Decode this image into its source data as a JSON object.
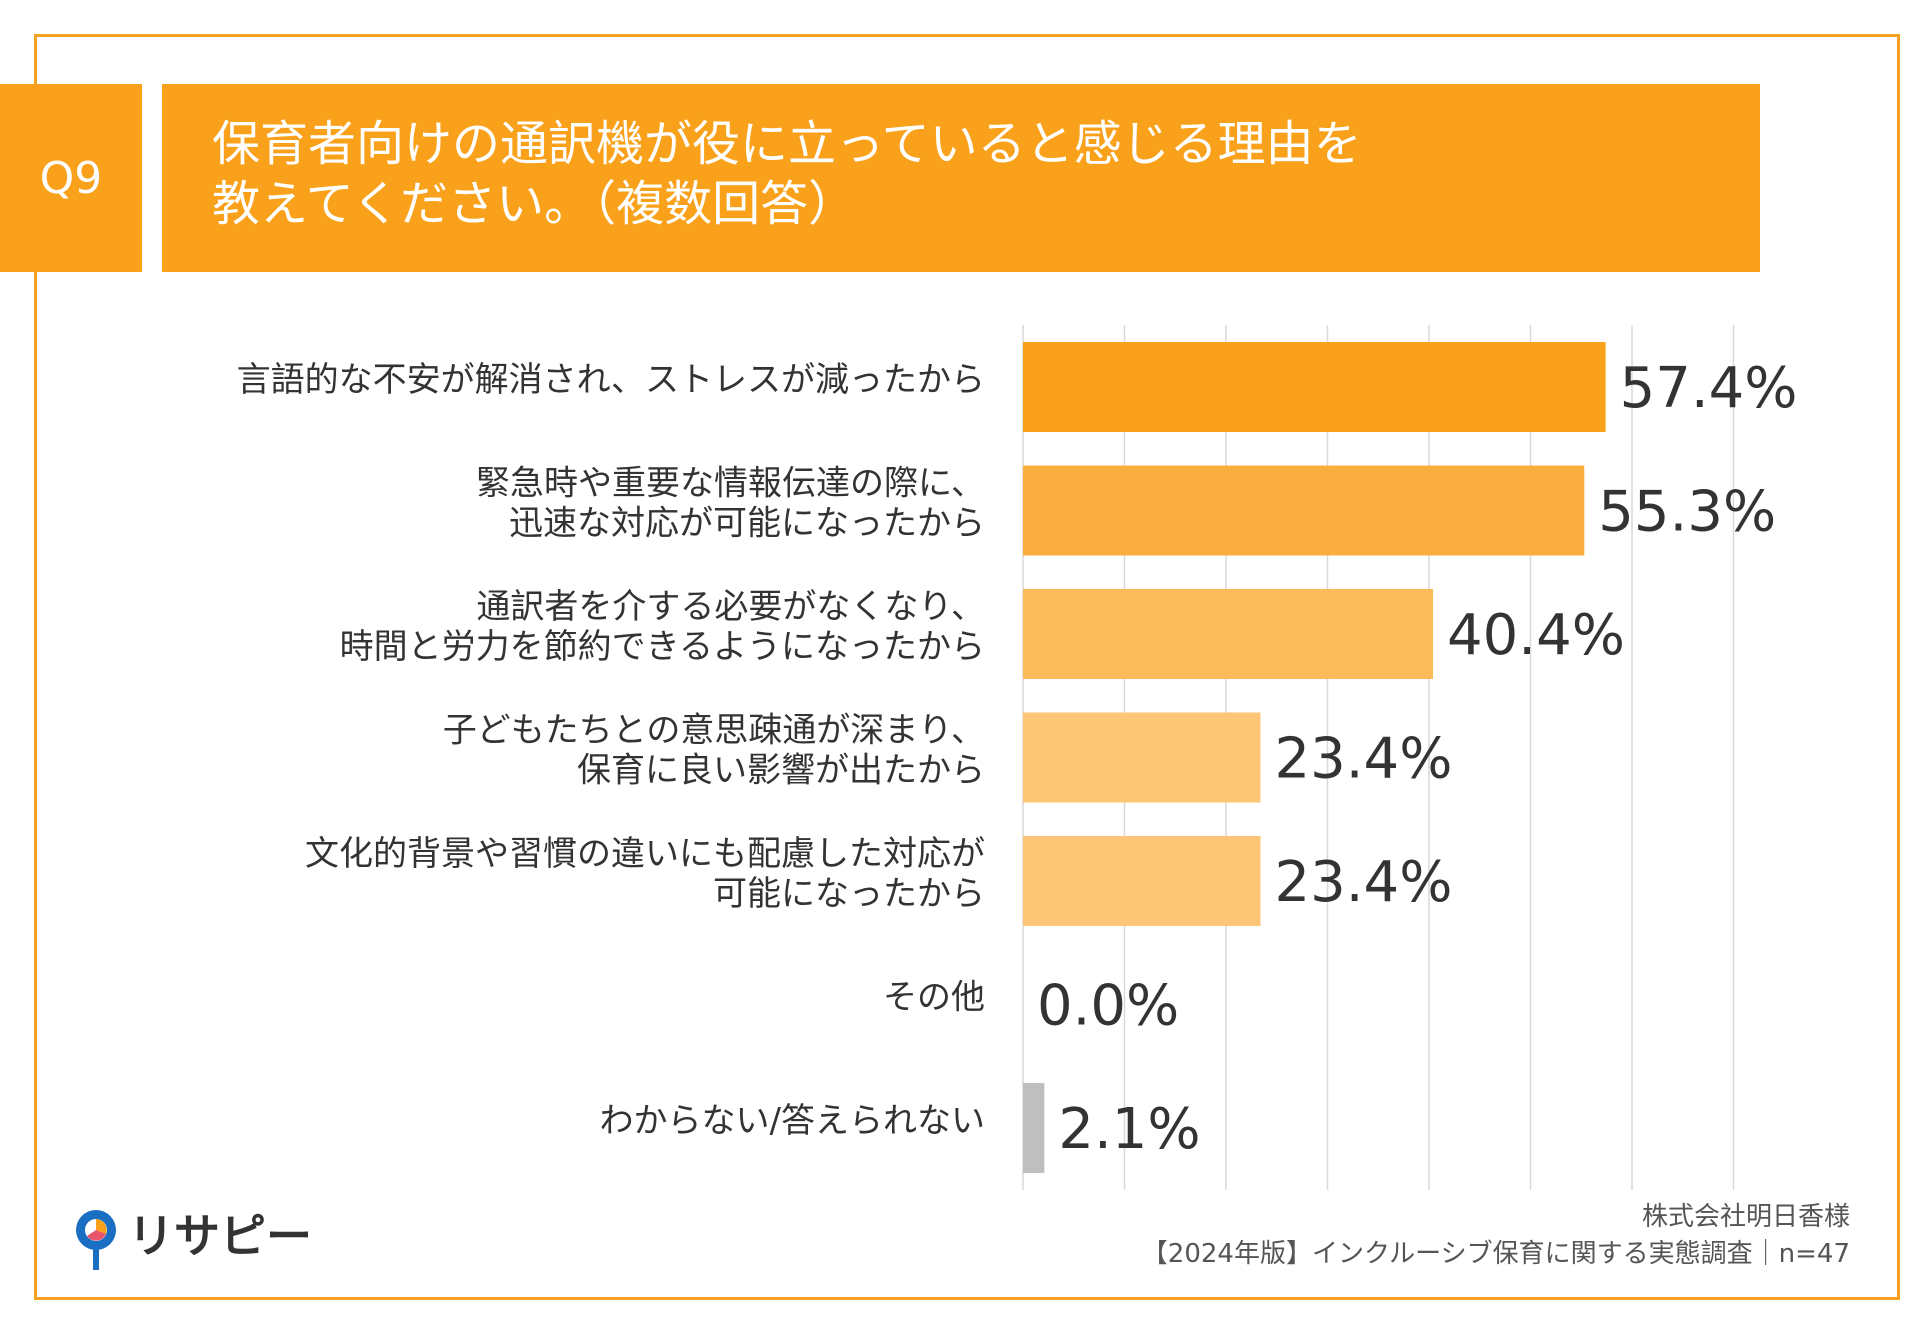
{
  "question": {
    "number": "Q9",
    "title_line1": "保育者向けの通訳機が役に立っていると感じる理由を",
    "title_line2": "教えてください。（複数回答）"
  },
  "chart_data": {
    "type": "bar",
    "orientation": "horizontal",
    "categories": [
      [
        "言語的な不安が解消され、ストレスが減ったから"
      ],
      [
        "緊急時や重要な情報伝達の際に、",
        "迅速な対応が可能になったから"
      ],
      [
        "通訳者を介する必要がなくなり、",
        "時間と労力を節約できるようになったから"
      ],
      [
        "子どもたちとの意思疎通が深まり、",
        "保育に良い影響が出たから"
      ],
      [
        "文化的背景や習慣の違いにも配慮した対応が",
        "可能になったから"
      ],
      [
        "その他"
      ],
      [
        "わからない/答えられない"
      ]
    ],
    "values": [
      57.4,
      55.3,
      40.4,
      23.4,
      23.4,
      0.0,
      2.1
    ],
    "value_labels": [
      "57.4%",
      "55.3%",
      "40.4%",
      "23.4%",
      "23.4%",
      "0.0%",
      "2.1%"
    ],
    "bar_colors": [
      "#f9a11b",
      "#fbae40",
      "#fcbb59",
      "#fdc676",
      "#fdc676",
      "#fdc676",
      "#bfbfbf"
    ],
    "xlim": [
      0,
      70
    ],
    "grid": true,
    "grid_step": 10,
    "unit": "%"
  },
  "footer": {
    "company": "株式会社明日香様",
    "survey": "【2024年版】インクルーシブ保育に関する実態調査｜n=47"
  },
  "logo": {
    "text": "リサピー"
  },
  "colors": {
    "accent": "#f9a11b",
    "border": "#f4a320",
    "grid": "#d9d9d9"
  }
}
